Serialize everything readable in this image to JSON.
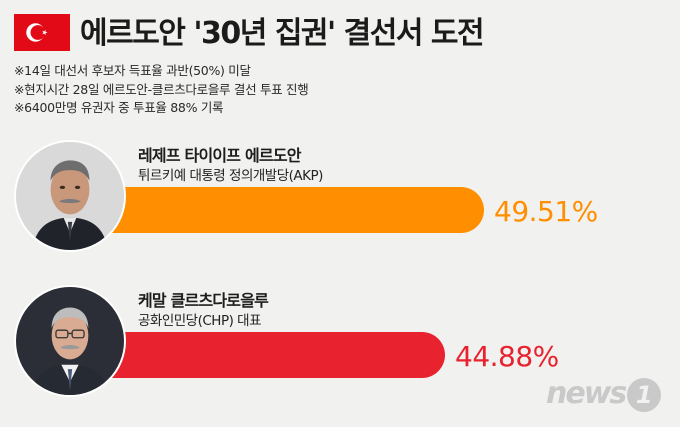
{
  "header": {
    "title": "에르도안 '30년 집권' 결선서 도전",
    "flag_icon": "turkey-flag-icon"
  },
  "notes": [
    "※14일 대선서 후보자 득표율 과반(50%) 미달",
    "※현지시간 28일 에르도안-클르츠다로을루 결선 투표 진행",
    "※6400만명 유권자 중 투표율 88% 기록"
  ],
  "chart_data": {
    "type": "bar",
    "orientation": "horizontal",
    "title": "에르도안 '30년 집권' 결선서 도전",
    "categories": [
      "레제프 타이이프 에르도안",
      "케말 클르츠다로을루"
    ],
    "values": [
      49.51,
      44.88
    ],
    "labels": [
      "49.51%",
      "44.88%"
    ],
    "parties": [
      "튀르키예 대통령 정의개발당(AKP)",
      "공화인민당(CHP) 대표"
    ],
    "unit": "%",
    "xlim": [
      0,
      55
    ],
    "colors": [
      "#ff8f00",
      "#e8222e"
    ],
    "grid": false,
    "legend": "none"
  },
  "photos": [
    "portrait-erdogan",
    "portrait-kilicdaroglu"
  ],
  "logo": {
    "text": "news",
    "mark": "1"
  }
}
